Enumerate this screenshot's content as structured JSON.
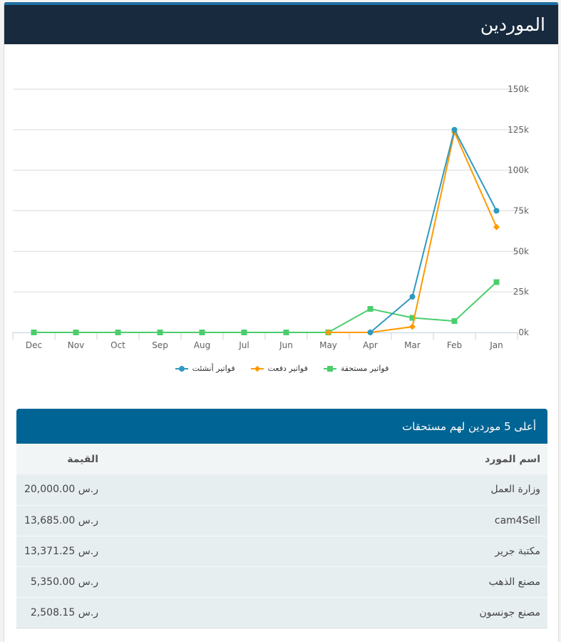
{
  "header": {
    "title": "الموردين"
  },
  "colors": {
    "header_bg": "#172a3e",
    "accent_stripe": "#1f6fa3",
    "table_header_bg": "#006494",
    "series_created": "#2f9ac0",
    "series_paid": "#ff9a00",
    "series_due": "#4ccd6d"
  },
  "chart_data": {
    "type": "line",
    "title": "",
    "xlabel": "",
    "ylabel": "",
    "categories": [
      "Dec",
      "Nov",
      "Oct",
      "Sep",
      "Aug",
      "Jul",
      "Jun",
      "May",
      "Apr",
      "Mar",
      "Feb",
      "Jan"
    ],
    "y_ticks": [
      "0k",
      "25k",
      "50k",
      "75k",
      "100k",
      "125k",
      "150k"
    ],
    "ylim": [
      0,
      150000
    ],
    "y_axis_position": "right",
    "grid": true,
    "legend_position": "bottom",
    "series": [
      {
        "name": "فواتير أنشئت",
        "color": "#2f9ac0",
        "marker": "circle",
        "values": [
          null,
          null,
          null,
          null,
          null,
          null,
          null,
          null,
          0,
          22000,
          125000,
          75000
        ]
      },
      {
        "name": "فواتير دفعت",
        "color": "#ff9a00",
        "marker": "diamond",
        "values": [
          null,
          null,
          null,
          null,
          null,
          null,
          null,
          0,
          0,
          3500,
          123500,
          65000
        ]
      },
      {
        "name": "فواتير مستحقة",
        "color": "#4ccd6d",
        "marker": "square",
        "values": [
          0,
          0,
          0,
          0,
          0,
          0,
          0,
          0,
          14500,
          9000,
          7000,
          31000
        ]
      }
    ]
  },
  "legend": [
    {
      "label": "فواتير أنشئت",
      "marker": "circle",
      "color": "#2f9ac0"
    },
    {
      "label": "فواتير دفعت",
      "marker": "diamond",
      "color": "#ff9a00"
    },
    {
      "label": "فواتير مستحقة",
      "marker": "square",
      "color": "#4ccd6d"
    }
  ],
  "top_suppliers": {
    "title": "أعلى 5 موردين لهم مستحقات",
    "columns": {
      "name": "اسم المورد",
      "value": "القيمة"
    },
    "rows": [
      {
        "name": "وزارة العمل",
        "value": "20,000.00 ر.س"
      },
      {
        "name": "cam4Sell",
        "value": "13,685.00 ر.س"
      },
      {
        "name": "مكتبة جرير",
        "value": "13,371.25 ر.س"
      },
      {
        "name": "مصنع الذهب",
        "value": "5,350.00 ر.س"
      },
      {
        "name": "مصنع جونسون",
        "value": "2,508.15 ر.س"
      }
    ]
  }
}
